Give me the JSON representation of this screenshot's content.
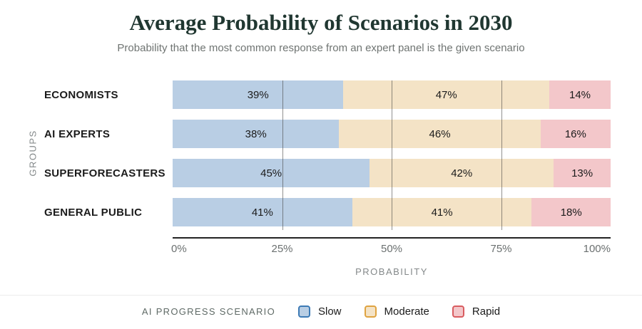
{
  "title": "Average Probability of Scenarios in 2030",
  "subtitle": "Probability that the most common response from an expert panel is the given scenario",
  "chart_data": {
    "type": "bar",
    "orientation": "horizontal",
    "stacked": true,
    "title": "Average Probability of Scenarios in 2030",
    "categories": [
      "ECONOMISTS",
      "AI EXPERTS",
      "SUPERFORECASTERS",
      "GENERAL PUBLIC"
    ],
    "series": [
      {
        "name": "Slow",
        "values": [
          39,
          38,
          45,
          41
        ],
        "fill": "#b9cee4",
        "border": "#3d7ab5"
      },
      {
        "name": "Moderate",
        "values": [
          47,
          46,
          42,
          41
        ],
        "fill": "#f4e3c6",
        "border": "#dfa340"
      },
      {
        "name": "Rapid",
        "values": [
          14,
          16,
          13,
          18
        ],
        "fill": "#f3c7ca",
        "border": "#d95c60"
      }
    ],
    "value_labels": [
      [
        "39%",
        "47%",
        "14%"
      ],
      [
        "38%",
        "46%",
        "16%"
      ],
      [
        "45%",
        "42%",
        "13%"
      ],
      [
        "41%",
        "41%",
        "18%"
      ]
    ],
    "xlabel": "PROBABILITY",
    "ylabel": "GROUPS",
    "x_ticks": [
      "0%",
      "25%",
      "50%",
      "75%",
      "100%"
    ],
    "xlim": [
      0,
      100
    ],
    "gridlines_at": [
      25,
      50,
      75
    ],
    "grid": true,
    "legend_position": "bottom"
  },
  "legend": {
    "title": "AI PROGRESS SCENARIO"
  },
  "colors": {
    "title_text": "#203731",
    "muted_text": "#6f7472",
    "axis_label_text": "#84898a",
    "axis_line": "#232323",
    "gridline": "rgba(72,72,70,0.6)",
    "divider": "#ececec"
  }
}
